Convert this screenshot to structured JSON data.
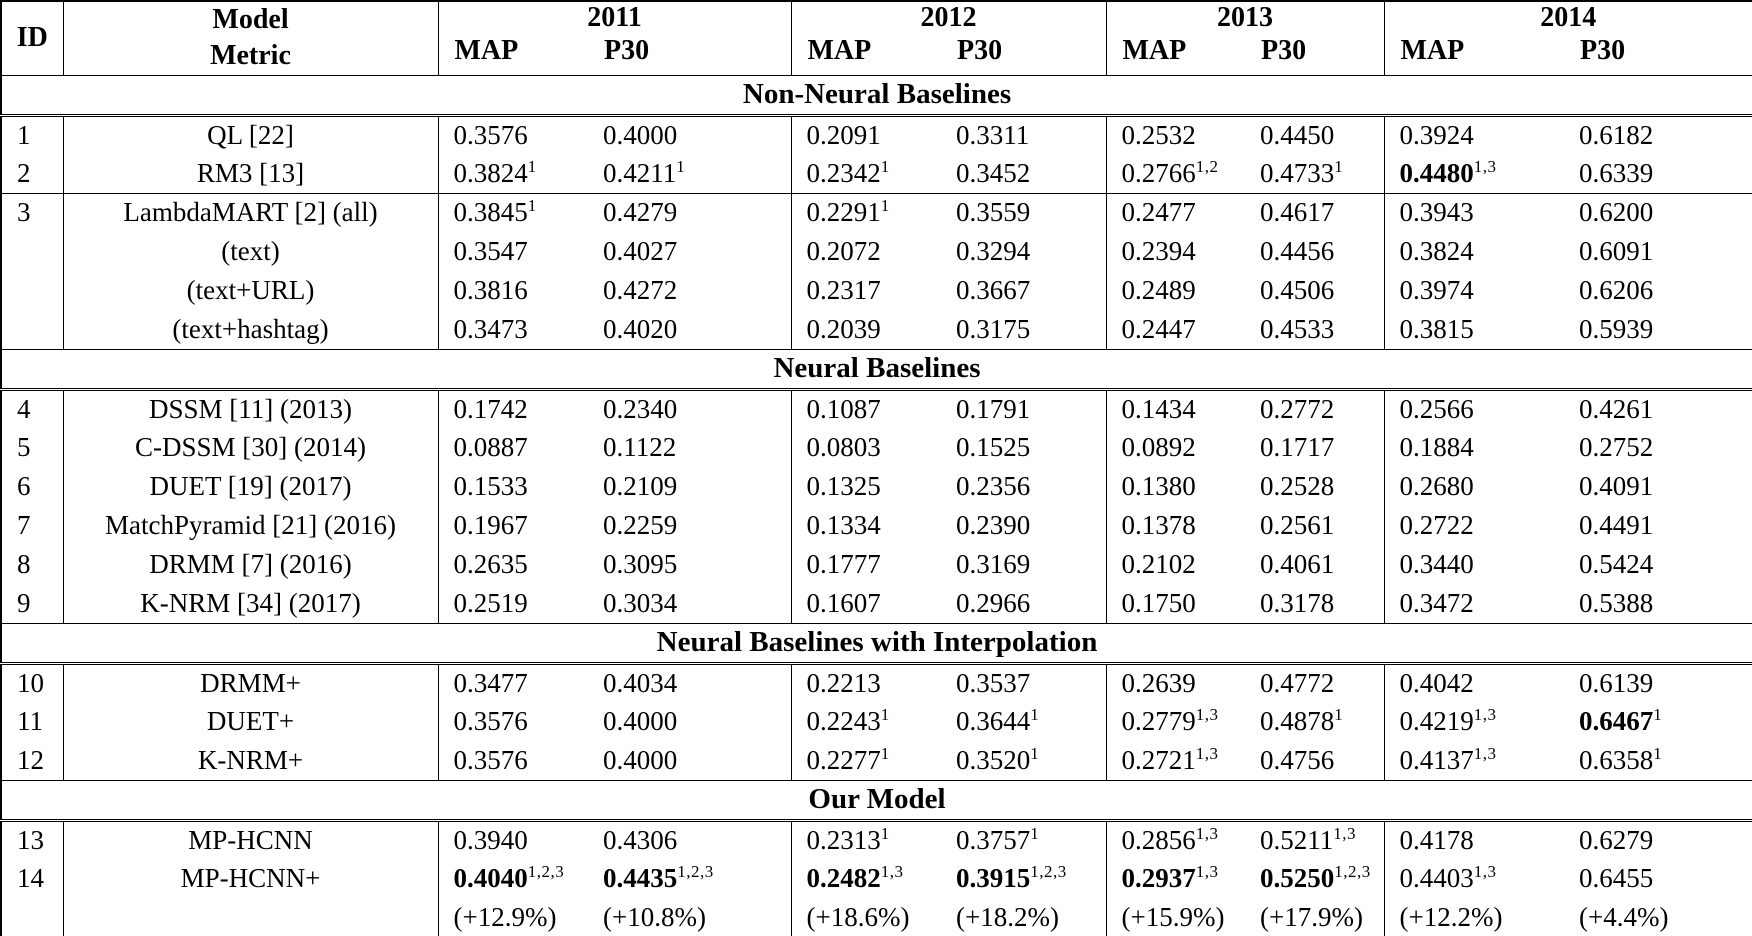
{
  "colors": {
    "background": "#ffffff",
    "text": "#000000",
    "border": "#000000"
  },
  "table": {
    "header": {
      "id_label": "ID",
      "model_label": "Model",
      "metric_label": "Metric",
      "year_groups": [
        {
          "year": "2011",
          "metrics": [
            "MAP",
            "P30"
          ]
        },
        {
          "year": "2012",
          "metrics": [
            "MAP",
            "P30"
          ]
        },
        {
          "year": "2013",
          "metrics": [
            "MAP",
            "P30"
          ]
        },
        {
          "year": "2014",
          "metrics": [
            "MAP",
            "P30"
          ]
        }
      ]
    },
    "sections": [
      {
        "title": "Non-Neural Baselines",
        "groups": [
          {
            "rows": [
              {
                "id": "1",
                "model": "QL [22]",
                "values": [
                  {
                    "v": "0.3576"
                  },
                  {
                    "v": "0.4000"
                  },
                  {
                    "v": "0.2091"
                  },
                  {
                    "v": "0.3311"
                  },
                  {
                    "v": "0.2532"
                  },
                  {
                    "v": "0.4450"
                  },
                  {
                    "v": "0.3924"
                  },
                  {
                    "v": "0.6182"
                  }
                ]
              },
              {
                "id": "2",
                "model": "RM3 [13]",
                "values": [
                  {
                    "v": "0.3824",
                    "sup": "1"
                  },
                  {
                    "v": "0.4211",
                    "sup": "1"
                  },
                  {
                    "v": "0.2342",
                    "sup": "1"
                  },
                  {
                    "v": "0.3452"
                  },
                  {
                    "v": "0.2766",
                    "sup": "1,2"
                  },
                  {
                    "v": "0.4733",
                    "sup": "1"
                  },
                  {
                    "v": "0.4480",
                    "sup": "1,3",
                    "bold": true
                  },
                  {
                    "v": "0.6339"
                  }
                ]
              }
            ]
          },
          {
            "rows": [
              {
                "id": "3",
                "model": "LambdaMART [2] (all)",
                "values": [
                  {
                    "v": "0.3845",
                    "sup": "1"
                  },
                  {
                    "v": "0.4279"
                  },
                  {
                    "v": "0.2291",
                    "sup": "1"
                  },
                  {
                    "v": "0.3559"
                  },
                  {
                    "v": "0.2477"
                  },
                  {
                    "v": "0.4617"
                  },
                  {
                    "v": "0.3943"
                  },
                  {
                    "v": "0.6200"
                  }
                ]
              },
              {
                "id": "",
                "model": "(text)",
                "values": [
                  {
                    "v": "0.3547"
                  },
                  {
                    "v": "0.4027"
                  },
                  {
                    "v": "0.2072"
                  },
                  {
                    "v": "0.3294"
                  },
                  {
                    "v": "0.2394"
                  },
                  {
                    "v": "0.4456"
                  },
                  {
                    "v": "0.3824"
                  },
                  {
                    "v": "0.6091"
                  }
                ]
              },
              {
                "id": "",
                "model": "(text+URL)",
                "values": [
                  {
                    "v": "0.3816"
                  },
                  {
                    "v": "0.4272"
                  },
                  {
                    "v": "0.2317"
                  },
                  {
                    "v": "0.3667"
                  },
                  {
                    "v": "0.2489"
                  },
                  {
                    "v": "0.4506"
                  },
                  {
                    "v": "0.3974"
                  },
                  {
                    "v": "0.6206"
                  }
                ]
              },
              {
                "id": "",
                "model": "(text+hashtag)",
                "values": [
                  {
                    "v": "0.3473"
                  },
                  {
                    "v": "0.4020"
                  },
                  {
                    "v": "0.2039"
                  },
                  {
                    "v": "0.3175"
                  },
                  {
                    "v": "0.2447"
                  },
                  {
                    "v": "0.4533"
                  },
                  {
                    "v": "0.3815"
                  },
                  {
                    "v": "0.5939"
                  }
                ]
              }
            ]
          }
        ]
      },
      {
        "title": "Neural Baselines",
        "groups": [
          {
            "rows": [
              {
                "id": "4",
                "model": "DSSM [11] (2013)",
                "values": [
                  {
                    "v": "0.1742"
                  },
                  {
                    "v": "0.2340"
                  },
                  {
                    "v": "0.1087"
                  },
                  {
                    "v": "0.1791"
                  },
                  {
                    "v": "0.1434"
                  },
                  {
                    "v": "0.2772"
                  },
                  {
                    "v": "0.2566"
                  },
                  {
                    "v": "0.4261"
                  }
                ]
              },
              {
                "id": "5",
                "model": "C-DSSM [30] (2014)",
                "values": [
                  {
                    "v": "0.0887"
                  },
                  {
                    "v": "0.1122"
                  },
                  {
                    "v": "0.0803"
                  },
                  {
                    "v": "0.1525"
                  },
                  {
                    "v": "0.0892"
                  },
                  {
                    "v": "0.1717"
                  },
                  {
                    "v": "0.1884"
                  },
                  {
                    "v": "0.2752"
                  }
                ]
              },
              {
                "id": "6",
                "model": "DUET [19] (2017)",
                "values": [
                  {
                    "v": "0.1533"
                  },
                  {
                    "v": "0.2109"
                  },
                  {
                    "v": "0.1325"
                  },
                  {
                    "v": "0.2356"
                  },
                  {
                    "v": "0.1380"
                  },
                  {
                    "v": "0.2528"
                  },
                  {
                    "v": "0.2680"
                  },
                  {
                    "v": "0.4091"
                  }
                ]
              },
              {
                "id": "7",
                "model": "MatchPyramid [21] (2016)",
                "values": [
                  {
                    "v": "0.1967"
                  },
                  {
                    "v": "0.2259"
                  },
                  {
                    "v": "0.1334"
                  },
                  {
                    "v": "0.2390"
                  },
                  {
                    "v": "0.1378"
                  },
                  {
                    "v": "0.2561"
                  },
                  {
                    "v": "0.2722"
                  },
                  {
                    "v": "0.4491"
                  }
                ]
              },
              {
                "id": "8",
                "model": "DRMM [7] (2016)",
                "values": [
                  {
                    "v": "0.2635"
                  },
                  {
                    "v": "0.3095"
                  },
                  {
                    "v": "0.1777"
                  },
                  {
                    "v": "0.3169"
                  },
                  {
                    "v": "0.2102"
                  },
                  {
                    "v": "0.4061"
                  },
                  {
                    "v": "0.3440"
                  },
                  {
                    "v": "0.5424"
                  }
                ]
              },
              {
                "id": "9",
                "model": "K-NRM [34] (2017)",
                "values": [
                  {
                    "v": "0.2519"
                  },
                  {
                    "v": "0.3034"
                  },
                  {
                    "v": "0.1607"
                  },
                  {
                    "v": "0.2966"
                  },
                  {
                    "v": "0.1750"
                  },
                  {
                    "v": "0.3178"
                  },
                  {
                    "v": "0.3472"
                  },
                  {
                    "v": "0.5388"
                  }
                ]
              }
            ]
          }
        ]
      },
      {
        "title": "Neural Baselines with Interpolation",
        "groups": [
          {
            "rows": [
              {
                "id": "10",
                "model": "DRMM+",
                "values": [
                  {
                    "v": "0.3477"
                  },
                  {
                    "v": "0.4034"
                  },
                  {
                    "v": "0.2213"
                  },
                  {
                    "v": "0.3537"
                  },
                  {
                    "v": "0.2639"
                  },
                  {
                    "v": "0.4772"
                  },
                  {
                    "v": "0.4042"
                  },
                  {
                    "v": "0.6139"
                  }
                ]
              },
              {
                "id": "11",
                "model": "DUET+",
                "values": [
                  {
                    "v": "0.3576"
                  },
                  {
                    "v": "0.4000"
                  },
                  {
                    "v": "0.2243",
                    "sup": "1"
                  },
                  {
                    "v": "0.3644",
                    "sup": "1"
                  },
                  {
                    "v": "0.2779",
                    "sup": "1,3"
                  },
                  {
                    "v": "0.4878",
                    "sup": "1"
                  },
                  {
                    "v": "0.4219",
                    "sup": "1,3"
                  },
                  {
                    "v": "0.6467",
                    "sup": "1",
                    "bold": true
                  }
                ]
              },
              {
                "id": "12",
                "model": "K-NRM+",
                "values": [
                  {
                    "v": "0.3576"
                  },
                  {
                    "v": "0.4000"
                  },
                  {
                    "v": "0.2277",
                    "sup": "1"
                  },
                  {
                    "v": "0.3520",
                    "sup": "1"
                  },
                  {
                    "v": "0.2721",
                    "sup": "1,3"
                  },
                  {
                    "v": "0.4756"
                  },
                  {
                    "v": "0.4137",
                    "sup": "1,3"
                  },
                  {
                    "v": "0.6358",
                    "sup": "1"
                  }
                ]
              }
            ]
          }
        ]
      },
      {
        "title": "Our Model",
        "groups": [
          {
            "rows": [
              {
                "id": "13",
                "model": "MP-HCNN",
                "values": [
                  {
                    "v": "0.3940"
                  },
                  {
                    "v": "0.4306"
                  },
                  {
                    "v": "0.2313",
                    "sup": "1"
                  },
                  {
                    "v": "0.3757",
                    "sup": "1"
                  },
                  {
                    "v": "0.2856",
                    "sup": "1,3"
                  },
                  {
                    "v": "0.5211",
                    "sup": "1,3"
                  },
                  {
                    "v": "0.4178"
                  },
                  {
                    "v": "0.6279"
                  }
                ]
              },
              {
                "id": "14",
                "model": "MP-HCNN+",
                "values": [
                  {
                    "v": "0.4040",
                    "sup": "1,2,3",
                    "bold": true
                  },
                  {
                    "v": "0.4435",
                    "sup": "1,2,3",
                    "bold": true
                  },
                  {
                    "v": "0.2482",
                    "sup": "1,3",
                    "bold": true
                  },
                  {
                    "v": "0.3915",
                    "sup": "1,2,3",
                    "bold": true
                  },
                  {
                    "v": "0.2937",
                    "sup": "1,3",
                    "bold": true
                  },
                  {
                    "v": "0.5250",
                    "sup": "1,2,3",
                    "bold": true
                  },
                  {
                    "v": "0.4403",
                    "sup": "1,3"
                  },
                  {
                    "v": "0.6455"
                  }
                ]
              },
              {
                "id": "",
                "model": "",
                "values": [
                  {
                    "v": "(+12.9%)"
                  },
                  {
                    "v": "(+10.8%)"
                  },
                  {
                    "v": "(+18.6%)"
                  },
                  {
                    "v": "(+18.2%)"
                  },
                  {
                    "v": "(+15.9%)"
                  },
                  {
                    "v": "(+17.9%)"
                  },
                  {
                    "v": "(+12.2%)"
                  },
                  {
                    "v": "(+4.4%)"
                  }
                ]
              }
            ]
          }
        ]
      }
    ]
  }
}
